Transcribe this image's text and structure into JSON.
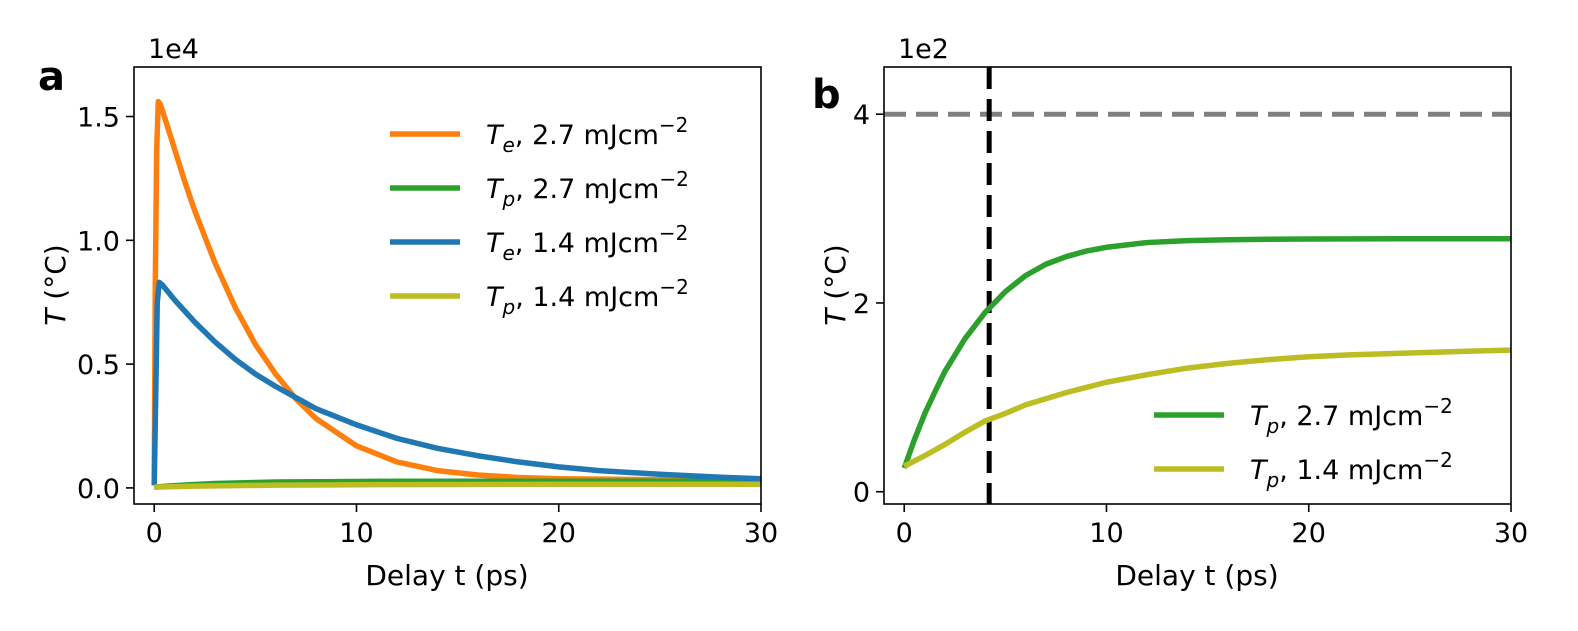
{
  "chart_data": [
    {
      "type": "line",
      "panel_label": "a",
      "multiplier": "1e4",
      "xlabel": "Delay t (ps)",
      "ylabel_symbol": "T",
      "ylabel_unit": "(°C)",
      "xlim": [
        -1,
        30
      ],
      "ylim": [
        -0.065,
        1.7
      ],
      "xticks": [
        0,
        10,
        20,
        30
      ],
      "xtick_labels": [
        "0",
        "10",
        "20",
        "30"
      ],
      "yticks": [
        0.0,
        0.5,
        1.0,
        1.5
      ],
      "ytick_labels": [
        "0.0",
        "0.5",
        "1.0",
        "1.5"
      ],
      "legend_position": "upper-right",
      "series": [
        {
          "name": "T_e, 2.7 mJcm^-2",
          "symbol": "T",
          "subscript": "e",
          "label_rest": ", 2.7 mJcm",
          "superscript": "−2",
          "color": "#ff7f0e",
          "x": [
            0,
            0.05,
            0.12,
            0.2,
            0.3,
            0.5,
            1,
            1.5,
            2,
            3,
            4,
            5,
            6,
            7,
            8,
            10,
            12,
            14,
            16,
            18,
            20,
            25,
            30
          ],
          "y": [
            0.02,
            0.8,
            1.36,
            1.56,
            1.55,
            1.5,
            1.37,
            1.24,
            1.12,
            0.91,
            0.73,
            0.58,
            0.46,
            0.36,
            0.28,
            0.17,
            0.105,
            0.07,
            0.052,
            0.042,
            0.037,
            0.033,
            0.032
          ]
        },
        {
          "name": "T_p, 2.7 mJcm^-2",
          "symbol": "T",
          "subscript": "p",
          "label_rest": ", 2.7 mJcm",
          "superscript": "−2",
          "color": "#2ca02c",
          "x": [
            0,
            1,
            2,
            3,
            4,
            5,
            6,
            8,
            10,
            12,
            15,
            20,
            25,
            30
          ],
          "y": [
            0.003,
            0.009,
            0.014,
            0.018,
            0.02,
            0.022,
            0.024,
            0.025,
            0.026,
            0.027,
            0.027,
            0.027,
            0.027,
            0.027
          ]
        },
        {
          "name": "T_e, 1.4 mJcm^-2",
          "symbol": "T",
          "subscript": "e",
          "label_rest": ", 1.4 mJcm",
          "superscript": "−2",
          "color": "#1f77b4",
          "x": [
            0,
            0.1,
            0.15,
            0.25,
            0.4,
            1,
            2,
            3,
            4,
            5,
            6,
            8,
            10,
            12,
            14,
            16,
            18,
            20,
            22,
            25,
            28,
            30
          ],
          "y": [
            0.01,
            0.5,
            0.75,
            0.83,
            0.82,
            0.76,
            0.67,
            0.59,
            0.52,
            0.46,
            0.41,
            0.32,
            0.255,
            0.2,
            0.16,
            0.13,
            0.105,
            0.085,
            0.07,
            0.055,
            0.043,
            0.037
          ]
        },
        {
          "name": "T_p, 1.4 mJcm^-2",
          "symbol": "T",
          "subscript": "p",
          "label_rest": ", 1.4 mJcm",
          "superscript": "−2",
          "color": "#bcbd22",
          "x": [
            0,
            1,
            2,
            4,
            6,
            8,
            10,
            15,
            20,
            25,
            30
          ],
          "y": [
            0.003,
            0.005,
            0.007,
            0.009,
            0.011,
            0.012,
            0.013,
            0.014,
            0.015,
            0.015,
            0.015
          ]
        }
      ]
    },
    {
      "type": "line",
      "panel_label": "b",
      "multiplier": "1e2",
      "xlabel": "Delay t (ps)",
      "ylabel_symbol": "T",
      "ylabel_unit": "(°C)",
      "xlim": [
        -1,
        30
      ],
      "ylim": [
        -0.13,
        4.5
      ],
      "xticks": [
        0,
        10,
        20,
        30
      ],
      "xtick_labels": [
        "0",
        "10",
        "20",
        "30"
      ],
      "yticks": [
        0,
        2,
        4
      ],
      "ytick_labels": [
        "0",
        "2",
        "4"
      ],
      "reference_lines": [
        {
          "orientation": "horizontal",
          "value": 4.0,
          "style": "dashed",
          "color": "#808080"
        },
        {
          "orientation": "vertical",
          "value": 4.2,
          "style": "dashed",
          "color": "#000000"
        }
      ],
      "legend_position": "lower-right",
      "series": [
        {
          "name": "T_p, 2.7 mJcm^-2",
          "symbol": "T",
          "subscript": "p",
          "label_rest": ", 2.7 mJcm",
          "superscript": "−2",
          "color": "#2ca02c",
          "x": [
            0,
            0.5,
            1,
            1.5,
            2,
            3,
            4,
            5,
            6,
            7,
            8,
            9,
            10,
            12,
            14,
            16,
            18,
            20,
            25,
            30
          ],
          "y": [
            0.25,
            0.55,
            0.82,
            1.05,
            1.27,
            1.62,
            1.9,
            2.12,
            2.29,
            2.41,
            2.49,
            2.55,
            2.59,
            2.64,
            2.66,
            2.67,
            2.675,
            2.678,
            2.68,
            2.68
          ]
        },
        {
          "name": "T_p, 1.4 mJcm^-2",
          "symbol": "T",
          "subscript": "p",
          "label_rest": ", 1.4 mJcm",
          "superscript": "−2",
          "color": "#bcbd22",
          "x": [
            0,
            1,
            2,
            3,
            4,
            5,
            6,
            8,
            10,
            12,
            14,
            16,
            18,
            20,
            22,
            25,
            28,
            30
          ],
          "y": [
            0.27,
            0.38,
            0.5,
            0.63,
            0.75,
            0.83,
            0.92,
            1.05,
            1.16,
            1.24,
            1.31,
            1.36,
            1.4,
            1.43,
            1.45,
            1.47,
            1.49,
            1.5
          ]
        }
      ]
    }
  ]
}
